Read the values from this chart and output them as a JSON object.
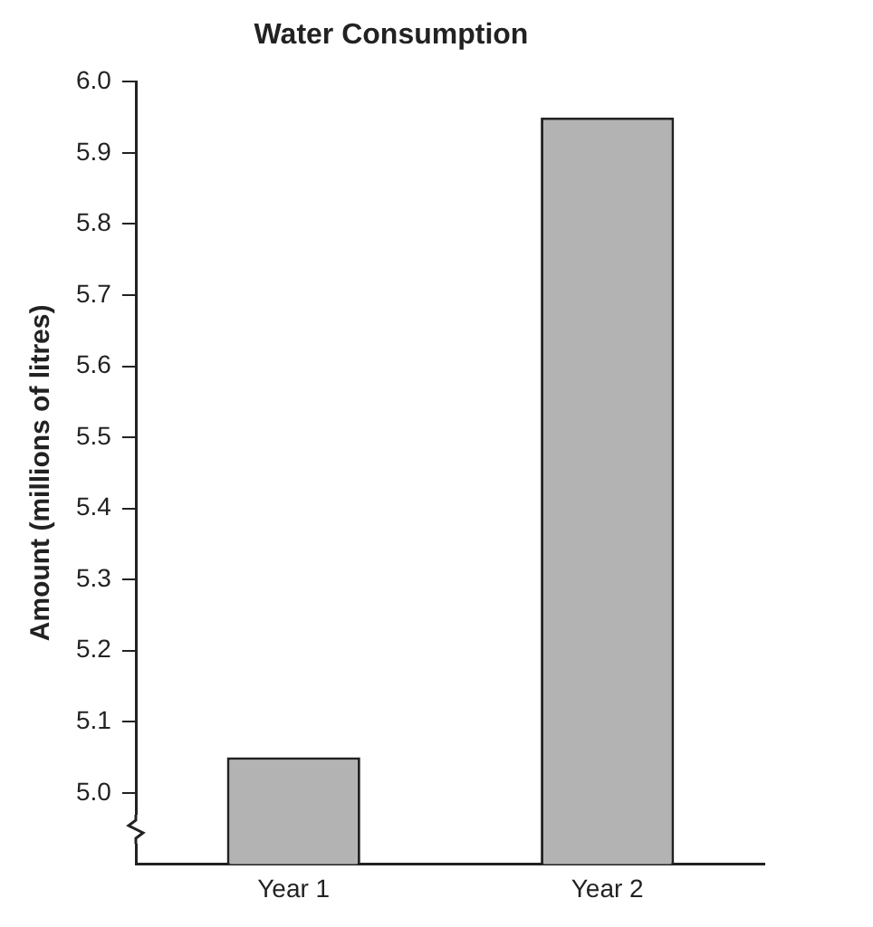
{
  "chart_data": {
    "type": "bar",
    "title": "Water Consumption",
    "ylabel": "Amount (millions of litres)",
    "categories": [
      "Year 1",
      "Year 2"
    ],
    "values": [
      5.05,
      5.95
    ],
    "color": "#b3b3b3",
    "ylim": [
      4.9,
      6.0
    ],
    "yticks": [
      {
        "value": 5.0,
        "label": "5.0"
      },
      5.1,
      5.2,
      5.3,
      5.4,
      5.5,
      5.6,
      5.7,
      5.8,
      5.9,
      {
        "value": 6.0,
        "label": "6.0"
      }
    ],
    "grid": false,
    "legend": false
  }
}
